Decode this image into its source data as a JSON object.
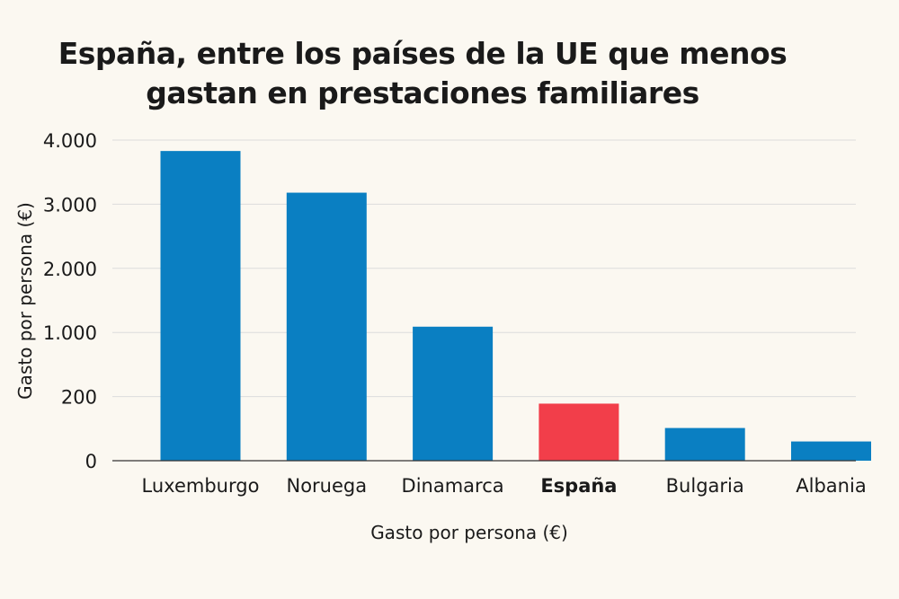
{
  "chart_data": {
    "type": "bar",
    "title_lines": [
      "España, entre los países de la UE que menos",
      "gastan en prestaciones familiares"
    ],
    "xlabel": "Gasto por persona (€)",
    "ylabel": "Gasto por persona (€)",
    "y_tick_labels": [
      "0",
      "200",
      "1.000",
      "2.000",
      "3.000",
      "4.000"
    ],
    "y_tick_positions": [
      0,
      1,
      2,
      3,
      4,
      5
    ],
    "y_axis_note": "non-linear axis: tick labels as printed",
    "categories": [
      "Luxemburgo",
      "Noruega",
      "Dinamarca",
      "España",
      "Bulgaria",
      "Albania"
    ],
    "highlight_category": "España",
    "values": [
      3830,
      3180,
      1090,
      180,
      60,
      35
    ],
    "plot_positions": [
      4.83,
      4.18,
      2.09,
      0.89,
      0.51,
      0.3
    ],
    "colors": {
      "bar": "#0a7fc2",
      "highlight": "#f23e4a",
      "grid": "#dcdcdc",
      "axis": "#333333"
    }
  }
}
